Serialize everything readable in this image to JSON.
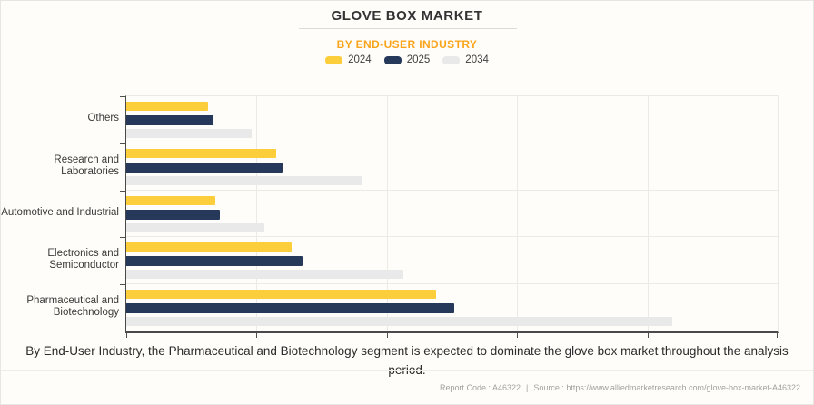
{
  "header": {
    "title": "GLOVE BOX MARKET",
    "subtitle": "BY END-USER INDUSTRY"
  },
  "chart_data": {
    "type": "bar",
    "orientation": "horizontal",
    "title": "GLOVE BOX MARKET",
    "subtitle": "BY END-USER INDUSTRY",
    "categories": [
      "Others",
      "Research and Laboratories",
      "Automotive and Industrial",
      "Electronics and Semiconductor",
      "Pharmaceutical and Biotechnology"
    ],
    "series": [
      {
        "name": "2024",
        "color": "#FDCE3B",
        "values": [
          0.63,
          1.15,
          0.68,
          1.27,
          2.38
        ]
      },
      {
        "name": "2025",
        "color": "#27395B",
        "values": [
          0.67,
          1.2,
          0.72,
          1.35,
          2.52
        ]
      },
      {
        "name": "2034",
        "color": "#E9E9E9",
        "values": [
          0.96,
          1.81,
          1.06,
          2.13,
          4.19
        ]
      }
    ],
    "xlim": [
      0,
      5
    ],
    "x_tick_labels": [],
    "grid": true,
    "legend_position": "top",
    "legend_entries": [
      "2024",
      "2025",
      "2034"
    ]
  },
  "caption": "By End-User Industry, the Pharmaceutical and Biotechnology segment is expected to dominate the glove box market throughout the analysis period.",
  "footer": {
    "report_code": "Report Code : A46322",
    "separator": "|",
    "source": "Source : https://www.alliedmarketresearch.com/glove-box-market-A46322"
  },
  "colors": {
    "subtitle_accent": "#F9A51B",
    "series_2024": "#FDCE3B",
    "series_2025": "#27395B",
    "series_2034": "#E9E9E9",
    "axis": "#4A4A4A",
    "gridline": "#ECEAE5",
    "background": "#FFFDF9"
  }
}
